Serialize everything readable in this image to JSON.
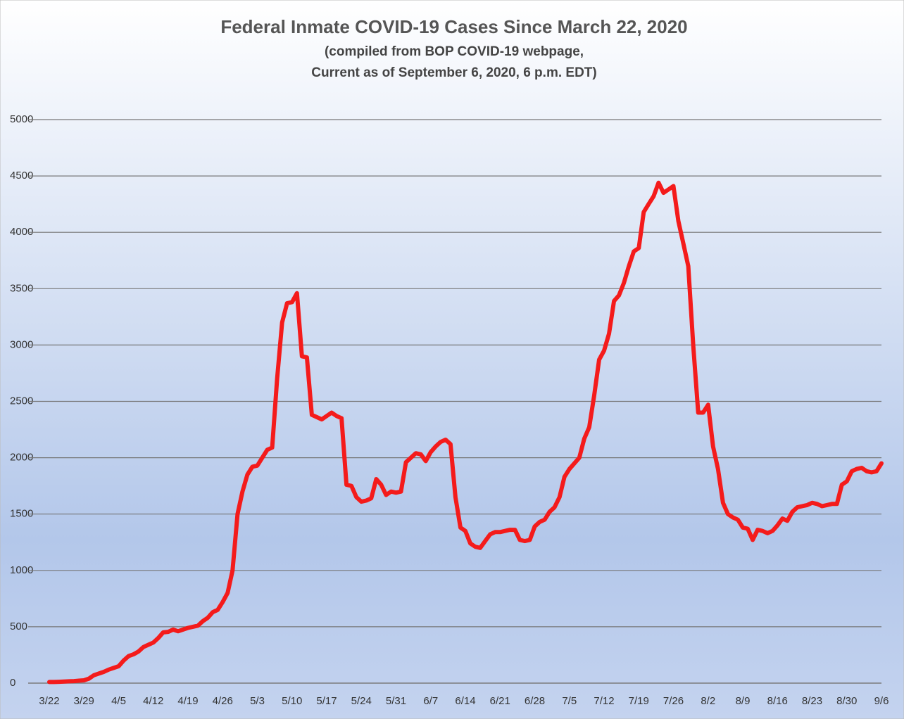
{
  "chart_data": {
    "type": "line",
    "title": "Federal Inmate COVID-19 Cases Since March 22, 2020",
    "subtitle": [
      "(compiled from BOP COVID-19 webpage,",
      "Current as of September 6, 2020, 6 p.m. EDT)"
    ],
    "categories": [
      "3/22",
      null,
      null,
      null,
      null,
      null,
      null,
      "3/29",
      null,
      null,
      null,
      null,
      null,
      null,
      "4/5",
      null,
      null,
      null,
      null,
      null,
      null,
      "4/12",
      null,
      null,
      null,
      null,
      null,
      null,
      "4/19",
      null,
      null,
      null,
      null,
      null,
      null,
      "4/26",
      null,
      null,
      null,
      null,
      null,
      null,
      "5/3",
      null,
      null,
      null,
      null,
      null,
      null,
      "5/10",
      null,
      null,
      null,
      null,
      null,
      null,
      "5/17",
      null,
      null,
      null,
      null,
      null,
      null,
      "5/24",
      null,
      null,
      null,
      null,
      null,
      null,
      "5/31",
      null,
      null,
      null,
      null,
      null,
      null,
      "6/7",
      null,
      null,
      null,
      null,
      null,
      null,
      "6/14",
      null,
      null,
      null,
      null,
      null,
      null,
      "6/21",
      null,
      null,
      null,
      null,
      null,
      null,
      "6/28",
      null,
      null,
      null,
      null,
      null,
      null,
      "7/5",
      null,
      null,
      null,
      null,
      null,
      null,
      "7/12",
      null,
      null,
      null,
      null,
      null,
      null,
      "7/19",
      null,
      null,
      null,
      null,
      null,
      null,
      "7/26",
      null,
      null,
      null,
      null,
      null,
      null,
      "8/2",
      null,
      null,
      null,
      null,
      null,
      null,
      "8/9",
      null,
      null,
      null,
      null,
      null,
      null,
      "8/16",
      null,
      null,
      null,
      null,
      null,
      null,
      "8/23",
      null,
      null,
      null,
      null,
      null,
      null,
      "8/30",
      null,
      null,
      null,
      null,
      null,
      null,
      "9/6"
    ],
    "values": [
      10,
      10,
      12,
      14,
      16,
      18,
      22,
      25,
      40,
      70,
      85,
      100,
      120,
      135,
      150,
      200,
      240,
      255,
      280,
      320,
      340,
      360,
      400,
      450,
      455,
      475,
      460,
      475,
      490,
      500,
      510,
      550,
      580,
      630,
      650,
      720,
      800,
      1000,
      1500,
      1700,
      1850,
      1920,
      1930,
      2000,
      2070,
      2090,
      2700,
      3200,
      3370,
      3380,
      3460,
      2900,
      2890,
      2380,
      2360,
      2340,
      2370,
      2400,
      2370,
      2350,
      1760,
      1750,
      1650,
      1610,
      1620,
      1640,
      1810,
      1760,
      1670,
      1700,
      1690,
      1700,
      1960,
      2000,
      2040,
      2030,
      1970,
      2050,
      2100,
      2140,
      2160,
      2120,
      1650,
      1380,
      1350,
      1240,
      1210,
      1200,
      1260,
      1320,
      1340,
      1340,
      1350,
      1360,
      1360,
      1270,
      1260,
      1270,
      1390,
      1430,
      1450,
      1520,
      1560,
      1650,
      1830,
      1900,
      1950,
      2000,
      2170,
      2270,
      2550,
      2870,
      2950,
      3100,
      3390,
      3440,
      3550,
      3700,
      3830,
      3860,
      4180,
      4250,
      4320,
      4440,
      4350,
      4380,
      4410,
      4100,
      3900,
      3700,
      3000,
      2400,
      2400,
      2470,
      2100,
      1900,
      1600,
      1500,
      1470,
      1450,
      1380,
      1370,
      1270,
      1360,
      1350,
      1330,
      1350,
      1400,
      1460,
      1440,
      1520,
      1560,
      1570,
      1580,
      1600,
      1590,
      1570,
      1580,
      1590,
      1590,
      1760,
      1790,
      1880,
      1900,
      1910,
      1880,
      1870,
      1880,
      1950
    ],
    "color": "#f41b1b",
    "ylim": [
      0,
      5000
    ],
    "yticks": [
      0,
      500,
      1000,
      1500,
      2000,
      2500,
      3000,
      3500,
      4000,
      4500,
      5000
    ],
    "grid": true
  }
}
